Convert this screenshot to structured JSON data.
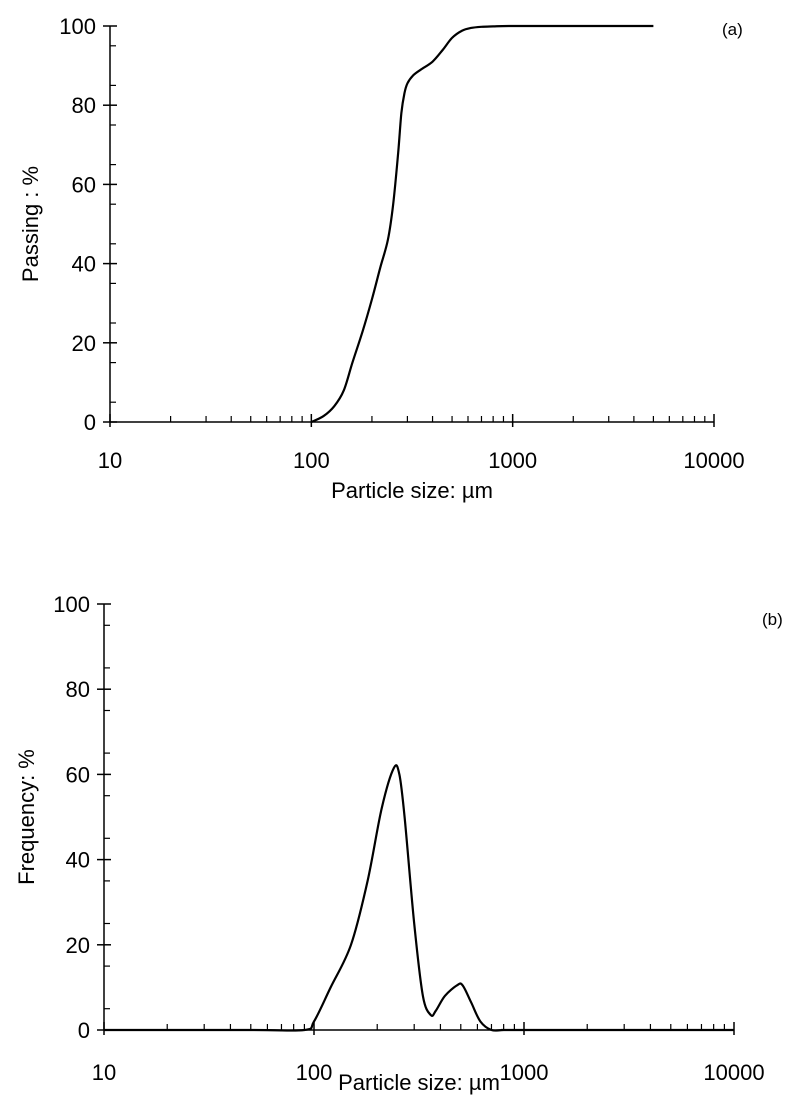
{
  "chart_data": [
    {
      "type": "line",
      "panel_label": "(a)",
      "title": "",
      "xlabel": "Particle size: µm",
      "ylabel": "Passing : %",
      "x_scale": "log",
      "xlim": [
        10,
        10000
      ],
      "ylim": [
        0,
        100
      ],
      "x_ticks": [
        10,
        100,
        1000,
        10000
      ],
      "x_tick_labels": [
        "10",
        "100",
        "1000",
        "10000"
      ],
      "y_ticks": [
        0,
        20,
        40,
        60,
        80,
        100
      ],
      "y_tick_labels": [
        "0",
        "20",
        "40",
        "60",
        "80",
        "100"
      ],
      "grid": false,
      "legend": "none",
      "line_color": "#000000",
      "series": [
        {
          "x": [
            100,
            115,
            130,
            145,
            160,
            180,
            200,
            220,
            240,
            255,
            270,
            280,
            290,
            300,
            320,
            350,
            400,
            450,
            500,
            560,
            620,
            700,
            800,
            1000,
            2000,
            5000
          ],
          "y": [
            0,
            1.5,
            4,
            8,
            15,
            23,
            31,
            39,
            46,
            55,
            68,
            78,
            83,
            85.5,
            87.5,
            89,
            91,
            94,
            97,
            98.8,
            99.5,
            99.8,
            99.9,
            100,
            100,
            100
          ]
        }
      ]
    },
    {
      "type": "line",
      "panel_label": "(b)",
      "title": "",
      "xlabel": "Particle size: µm",
      "ylabel": "Frequency: %",
      "x_scale": "log",
      "xlim": [
        10,
        10000
      ],
      "ylim": [
        0,
        100
      ],
      "x_ticks": [
        10,
        100,
        1000,
        10000
      ],
      "x_tick_labels": [
        "10",
        "100",
        "1000",
        "10000"
      ],
      "y_ticks": [
        0,
        20,
        40,
        60,
        80,
        100
      ],
      "y_tick_labels": [
        "0",
        "20",
        "40",
        "60",
        "80",
        "100"
      ],
      "grid": false,
      "legend": "none",
      "line_color": "#000000",
      "series": [
        {
          "x": [
            10,
            50,
            90,
            100,
            120,
            150,
            180,
            210,
            240,
            255,
            270,
            300,
            330,
            360,
            380,
            420,
            480,
            510,
            560,
            620,
            700,
            800,
            1000,
            10000
          ],
          "y": [
            0,
            0,
            0,
            2,
            10,
            20,
            35,
            52,
            61.5,
            60,
            50,
            25,
            8,
            3.5,
            4.5,
            8,
            10.5,
            10.5,
            6.5,
            2,
            0,
            0,
            0,
            0
          ]
        }
      ]
    }
  ]
}
